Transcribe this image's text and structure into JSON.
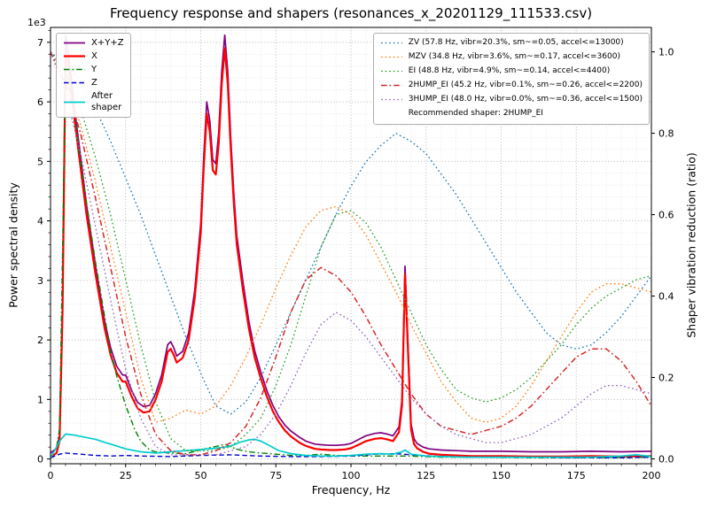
{
  "chart_data": {
    "type": "line",
    "title": "Frequency response and shapers (resonances_x_20201129_111533.csv)",
    "xlabel": "Frequency, Hz",
    "ylabel_left": "Power spectral density",
    "ylabel_right": "Shaper vibration reduction (ratio)",
    "y_left_offset": "1e3",
    "psd_units": "1e3",
    "xlim": [
      0,
      200
    ],
    "ylim_left": [
      -0.08,
      7.25
    ],
    "ylim_right": [
      -0.012,
      1.06
    ],
    "x_ticks": [
      0,
      25,
      50,
      75,
      100,
      125,
      150,
      175,
      200
    ],
    "y_left_ticks": [
      0,
      1,
      2,
      3,
      4,
      5,
      6,
      7
    ],
    "y_right_ticks": [
      "0.0",
      "0.2",
      "0.4",
      "0.6",
      "0.8",
      "1.0"
    ],
    "grid": "both",
    "psd_legend_loc": "upper left",
    "shaper_legend_loc": "upper right",
    "recommended_shaper": "2HUMP_EI",
    "psd_series": [
      {
        "name": "X+Y+Z",
        "color": "#800080",
        "linestyle": "solid",
        "width": 1.7,
        "x": [
          0,
          2,
          3,
          4,
          5,
          6,
          8,
          10,
          12,
          15,
          18,
          20,
          22,
          24,
          25,
          27,
          29,
          31,
          33,
          35,
          37,
          39,
          40,
          41,
          42,
          44,
          46,
          48,
          50,
          51,
          52,
          53,
          54,
          55,
          56,
          57,
          58,
          59,
          60,
          61,
          62,
          64,
          66,
          68,
          70,
          72,
          74,
          76,
          78,
          80,
          83,
          85,
          88,
          90,
          93,
          95,
          98,
          100,
          103,
          105,
          108,
          110,
          112,
          114,
          116,
          117,
          118,
          119,
          120,
          121,
          122,
          124,
          126,
          130,
          135,
          140,
          150,
          160,
          170,
          180,
          190,
          200
        ],
        "y": [
          0.1,
          0.18,
          0.39,
          2.63,
          7.12,
          6.81,
          5.89,
          5.08,
          4.26,
          3.24,
          2.32,
          1.87,
          1.56,
          1.41,
          1.41,
          1.15,
          0.95,
          0.88,
          0.9,
          1.1,
          1.41,
          1.92,
          1.97,
          1.87,
          1.73,
          1.81,
          2.12,
          2.83,
          3.96,
          5.08,
          6.0,
          5.69,
          5.03,
          4.96,
          5.49,
          6.51,
          7.12,
          6.51,
          5.38,
          4.47,
          3.75,
          2.99,
          2.32,
          1.81,
          1.46,
          1.15,
          0.9,
          0.71,
          0.57,
          0.47,
          0.36,
          0.3,
          0.25,
          0.24,
          0.23,
          0.23,
          0.24,
          0.26,
          0.34,
          0.39,
          0.43,
          0.44,
          0.42,
          0.39,
          0.54,
          1.0,
          3.24,
          1.92,
          0.59,
          0.34,
          0.26,
          0.2,
          0.17,
          0.15,
          0.14,
          0.13,
          0.13,
          0.12,
          0.12,
          0.13,
          0.12,
          0.13
        ]
      },
      {
        "name": "X",
        "color": "#ff0000",
        "linestyle": "solid",
        "width": 2.2,
        "x": [
          0,
          2,
          3,
          4,
          5,
          6,
          8,
          10,
          12,
          15,
          18,
          20,
          22,
          24,
          25,
          27,
          29,
          31,
          33,
          35,
          37,
          39,
          40,
          41,
          42,
          44,
          46,
          48,
          50,
          51,
          52,
          53,
          54,
          55,
          56,
          57,
          58,
          59,
          60,
          61,
          62,
          64,
          66,
          68,
          70,
          72,
          74,
          76,
          78,
          80,
          83,
          85,
          88,
          90,
          93,
          95,
          98,
          100,
          103,
          105,
          108,
          110,
          112,
          114,
          116,
          117,
          118,
          119,
          120,
          121,
          122,
          124,
          126,
          130,
          135,
          140,
          150,
          160,
          170,
          180,
          190,
          200
        ],
        "y": [
          0.02,
          0.1,
          0.3,
          2.5,
          6.9,
          6.6,
          5.7,
          4.9,
          4.1,
          3.1,
          2.2,
          1.75,
          1.45,
          1.3,
          1.3,
          1.05,
          0.85,
          0.78,
          0.8,
          1.0,
          1.3,
          1.8,
          1.85,
          1.75,
          1.62,
          1.7,
          2.0,
          2.7,
          3.8,
          4.9,
          5.8,
          5.5,
          4.85,
          4.78,
          5.3,
          6.3,
          6.9,
          6.3,
          5.2,
          4.3,
          3.6,
          2.85,
          2.2,
          1.7,
          1.35,
          1.05,
          0.8,
          0.62,
          0.48,
          0.38,
          0.27,
          0.22,
          0.17,
          0.16,
          0.15,
          0.15,
          0.16,
          0.18,
          0.25,
          0.3,
          0.34,
          0.35,
          0.33,
          0.3,
          0.45,
          0.9,
          3.1,
          1.8,
          0.5,
          0.25,
          0.18,
          0.12,
          0.09,
          0.07,
          0.06,
          0.05,
          0.05,
          0.04,
          0.04,
          0.05,
          0.04,
          0.05
        ]
      },
      {
        "name": "Y",
        "color": "#008000",
        "linestyle": "dashdot",
        "width": 1.4,
        "x": [
          0,
          2,
          3,
          4,
          5,
          6,
          8,
          10,
          12,
          15,
          18,
          20,
          22,
          25,
          28,
          30,
          33,
          35,
          40,
          45,
          50,
          53,
          56,
          58,
          60,
          63,
          66,
          70,
          75,
          80,
          85,
          90,
          95,
          100,
          110,
          120,
          130,
          140,
          160,
          180,
          200
        ],
        "y": [
          0.02,
          0.2,
          0.5,
          3.5,
          6.6,
          6.3,
          5.8,
          5.0,
          4.3,
          3.3,
          2.4,
          1.8,
          1.4,
          0.9,
          0.5,
          0.3,
          0.15,
          0.12,
          0.1,
          0.09,
          0.15,
          0.19,
          0.22,
          0.25,
          0.2,
          0.15,
          0.12,
          0.1,
          0.08,
          0.06,
          0.06,
          0.08,
          0.06,
          0.05,
          0.05,
          0.05,
          0.03,
          0.03,
          0.02,
          0.02,
          0.03
        ]
      },
      {
        "name": "Z",
        "color": "#0000cd",
        "linestyle": "dashed",
        "width": 1.4,
        "x": [
          0,
          3,
          5,
          10,
          15,
          20,
          25,
          30,
          40,
          50,
          60,
          70,
          80,
          90,
          100,
          108,
          115,
          120,
          130,
          140,
          150,
          160,
          170,
          180,
          190,
          200
        ],
        "y": [
          0.02,
          0.08,
          0.1,
          0.08,
          0.06,
          0.05,
          0.06,
          0.05,
          0.04,
          0.06,
          0.07,
          0.05,
          0.04,
          0.04,
          0.05,
          0.08,
          0.09,
          0.07,
          0.04,
          0.03,
          0.03,
          0.03,
          0.02,
          0.02,
          0.02,
          0.03
        ]
      },
      {
        "name": "After shaper",
        "color": "#00cdcd",
        "linestyle": "solid",
        "width": 1.7,
        "x": [
          0,
          2,
          3,
          5,
          8,
          10,
          12,
          15,
          18,
          20,
          25,
          30,
          35,
          40,
          45,
          50,
          55,
          58,
          60,
          63,
          66,
          68,
          70,
          73,
          76,
          80,
          85,
          90,
          95,
          100,
          105,
          110,
          114,
          117,
          118,
          120,
          125,
          130,
          140,
          150,
          160,
          170,
          180,
          190,
          195,
          200
        ],
        "y": [
          0.02,
          0.2,
          0.3,
          0.42,
          0.4,
          0.38,
          0.36,
          0.33,
          0.28,
          0.25,
          0.17,
          0.12,
          0.1,
          0.12,
          0.14,
          0.16,
          0.18,
          0.2,
          0.22,
          0.28,
          0.32,
          0.33,
          0.3,
          0.22,
          0.14,
          0.09,
          0.06,
          0.05,
          0.05,
          0.06,
          0.08,
          0.09,
          0.08,
          0.12,
          0.15,
          0.08,
          0.05,
          0.04,
          0.03,
          0.03,
          0.03,
          0.03,
          0.03,
          0.05,
          0.07,
          0.04
        ]
      }
    ],
    "shaper_x": [
      0,
      5,
      10,
      15,
      20,
      25,
      30,
      35,
      40,
      45,
      50,
      55,
      60,
      65,
      70,
      75,
      80,
      85,
      90,
      95,
      100,
      105,
      110,
      115,
      120,
      125,
      130,
      135,
      140,
      145,
      150,
      155,
      160,
      165,
      170,
      175,
      180,
      185,
      190,
      195,
      200
    ],
    "shaper_series": [
      {
        "name": "ZV",
        "freq_hz": 57.8,
        "vibr_pct": 20.3,
        "smoothing": 0.05,
        "max_accel": 13000,
        "color": "#1f77b4",
        "linestyle": "dotted",
        "width": 1.3,
        "y": [
          1.0,
          0.97,
          0.93,
          0.86,
          0.78,
          0.69,
          0.6,
          0.5,
          0.4,
          0.3,
          0.21,
          0.13,
          0.11,
          0.14,
          0.2,
          0.28,
          0.36,
          0.44,
          0.52,
          0.6,
          0.67,
          0.73,
          0.77,
          0.8,
          0.78,
          0.75,
          0.7,
          0.65,
          0.59,
          0.53,
          0.47,
          0.41,
          0.36,
          0.31,
          0.28,
          0.27,
          0.28,
          0.31,
          0.35,
          0.4,
          0.45
        ]
      },
      {
        "name": "MZV",
        "freq_hz": 34.8,
        "vibr_pct": 3.6,
        "smoothing": 0.17,
        "max_accel": 3600,
        "color": "#ff7f0e",
        "linestyle": "dotted",
        "width": 1.3,
        "y": [
          1.0,
          0.93,
          0.82,
          0.68,
          0.52,
          0.36,
          0.2,
          0.09,
          0.1,
          0.12,
          0.11,
          0.13,
          0.18,
          0.25,
          0.33,
          0.42,
          0.5,
          0.57,
          0.61,
          0.62,
          0.6,
          0.55,
          0.48,
          0.41,
          0.33,
          0.26,
          0.19,
          0.14,
          0.1,
          0.09,
          0.1,
          0.13,
          0.18,
          0.24,
          0.3,
          0.36,
          0.41,
          0.43,
          0.43,
          0.42,
          0.41
        ]
      },
      {
        "name": "EI",
        "freq_hz": 48.8,
        "vibr_pct": 4.9,
        "smoothing": 0.14,
        "max_accel": 4400,
        "color": "#2ca02c",
        "linestyle": "dotted",
        "width": 1.3,
        "y": [
          1.0,
          0.95,
          0.86,
          0.74,
          0.6,
          0.44,
          0.28,
          0.14,
          0.05,
          0.02,
          0.02,
          0.02,
          0.03,
          0.06,
          0.1,
          0.18,
          0.28,
          0.4,
          0.52,
          0.6,
          0.61,
          0.58,
          0.52,
          0.44,
          0.36,
          0.28,
          0.22,
          0.17,
          0.15,
          0.14,
          0.15,
          0.17,
          0.2,
          0.24,
          0.28,
          0.33,
          0.37,
          0.4,
          0.42,
          0.44,
          0.45
        ]
      },
      {
        "name": "2HUMP_EI",
        "freq_hz": 45.2,
        "vibr_pct": 0.1,
        "smoothing": 0.26,
        "max_accel": 2200,
        "color": "#d62728",
        "linestyle": "dashdot",
        "width": 1.5,
        "y": [
          1.0,
          0.92,
          0.8,
          0.64,
          0.47,
          0.3,
          0.16,
          0.06,
          0.02,
          0.01,
          0.01,
          0.02,
          0.04,
          0.08,
          0.15,
          0.25,
          0.36,
          0.44,
          0.47,
          0.45,
          0.41,
          0.35,
          0.28,
          0.22,
          0.16,
          0.11,
          0.08,
          0.07,
          0.06,
          0.07,
          0.08,
          0.1,
          0.13,
          0.17,
          0.21,
          0.25,
          0.27,
          0.27,
          0.24,
          0.19,
          0.13
        ]
      },
      {
        "name": "3HUMP_EI",
        "freq_hz": 48.0,
        "vibr_pct": 0.0,
        "smoothing": 0.36,
        "max_accel": 1500,
        "color": "#9467bd",
        "linestyle": "dotted",
        "width": 1.3,
        "y": [
          1.0,
          0.9,
          0.75,
          0.57,
          0.39,
          0.22,
          0.1,
          0.03,
          0.01,
          0.01,
          0.01,
          0.01,
          0.02,
          0.03,
          0.06,
          0.11,
          0.18,
          0.26,
          0.33,
          0.36,
          0.34,
          0.3,
          0.25,
          0.2,
          0.15,
          0.11,
          0.08,
          0.06,
          0.05,
          0.04,
          0.04,
          0.05,
          0.06,
          0.08,
          0.1,
          0.13,
          0.16,
          0.18,
          0.18,
          0.17,
          0.16
        ]
      }
    ]
  },
  "legend_psd": {
    "items": [
      {
        "label": "X+Y+Z",
        "color": "#800080",
        "style": "solid",
        "width": 1.7
      },
      {
        "label": "X",
        "color": "#ff0000",
        "style": "solid",
        "width": 2.2
      },
      {
        "label": "Y",
        "color": "#008000",
        "style": "dashdot",
        "width": 1.4
      },
      {
        "label": "Z",
        "color": "#0000cd",
        "style": "dashed",
        "width": 1.4
      },
      {
        "label": "After\nshaper",
        "color": "#00cdcd",
        "style": "solid",
        "width": 1.7
      }
    ]
  },
  "legend_shapers": {
    "items": [
      {
        "label": "ZV (57.8 Hz, vibr=20.3%, sm~=0.05, accel<=13000)",
        "color": "#1f77b4",
        "style": "dotted",
        "width": 1.3
      },
      {
        "label": "MZV (34.8 Hz, vibr=3.6%, sm~=0.17, accel<=3600)",
        "color": "#ff7f0e",
        "style": "dotted",
        "width": 1.3
      },
      {
        "label": "EI (48.8 Hz, vibr=4.9%, sm~=0.14, accel<=4400)",
        "color": "#2ca02c",
        "style": "dotted",
        "width": 1.3
      },
      {
        "label": "2HUMP_EI (45.2 Hz, vibr=0.1%, sm~=0.26, accel<=2200)",
        "color": "#d62728",
        "style": "dashdot",
        "width": 1.5
      },
      {
        "label": "3HUMP_EI (48.0 Hz, vibr=0.0%, sm~=0.36, accel<=1500)",
        "color": "#9467bd",
        "style": "dotted",
        "width": 1.3
      }
    ],
    "note": "Recommended shaper: 2HUMP_EI"
  }
}
